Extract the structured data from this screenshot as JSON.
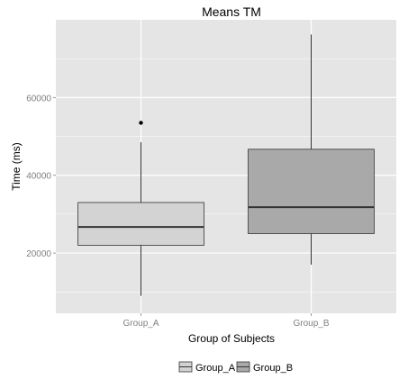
{
  "chart_data": {
    "type": "boxplot",
    "title": "Means TM",
    "xlabel": "Group of Subjects",
    "ylabel": "Time (ms)",
    "categories": [
      "Group_A",
      "Group_B"
    ],
    "ylim": [
      4500,
      80000
    ],
    "yticks": [
      20000,
      40000,
      60000
    ],
    "ytick_labels": [
      "20000",
      "40000",
      "60000"
    ],
    "grid": true,
    "legend_position": "bottom",
    "legend_entries": [
      "Group_A",
      "Group_B"
    ],
    "colors": {
      "panel": "#e5e5e5",
      "grid": "#ffffff",
      "group_a_fill": "#d3d3d3",
      "group_b_fill": "#a9a9a9",
      "box_line": "#333333",
      "tick_text": "#7f7f7f"
    },
    "boxes": [
      {
        "group": "Group_A",
        "min": 9000,
        "q1": 22000,
        "median": 26700,
        "q3": 33000,
        "max": 48500,
        "outliers": [
          53500
        ]
      },
      {
        "group": "Group_B",
        "min": 17000,
        "q1": 25000,
        "median": 31800,
        "q3": 46700,
        "max": 76200,
        "outliers": []
      }
    ]
  }
}
